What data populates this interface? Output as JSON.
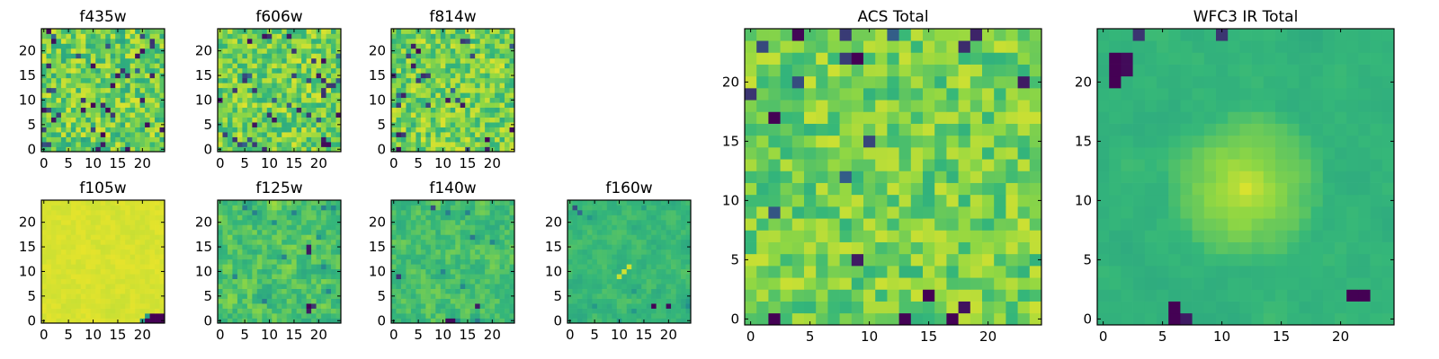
{
  "chart_data": {
    "type": "heatmap",
    "colormap": "viridis",
    "colormap_stops": [
      "#440154",
      "#31688e",
      "#21918c",
      "#35b779",
      "#90d743",
      "#fde725"
    ],
    "panels": [
      {
        "id": "f435w",
        "title": "f435w",
        "grid_size": 25,
        "x_range": [
          0,
          25
        ],
        "y_range": [
          0,
          25
        ],
        "xticks": [
          0,
          5,
          10,
          15,
          20
        ],
        "yticks": [
          0,
          5,
          10,
          15,
          20
        ],
        "mean_level": 0.72,
        "noise_level": 0.22,
        "dark_pixel_rate": 0.06,
        "smoothness": 0,
        "features": [],
        "seed": 11
      },
      {
        "id": "f606w",
        "title": "f606w",
        "grid_size": 25,
        "x_range": [
          0,
          25
        ],
        "y_range": [
          0,
          25
        ],
        "xticks": [
          0,
          5,
          10,
          15,
          20
        ],
        "yticks": [
          0,
          5,
          10,
          15,
          20
        ],
        "mean_level": 0.74,
        "noise_level": 0.2,
        "dark_pixel_rate": 0.05,
        "smoothness": 0,
        "features": [
          {
            "x": 21,
            "y": 1,
            "value": 0.02
          },
          {
            "x": 22,
            "y": 1,
            "value": 0.02
          },
          {
            "x": 21,
            "y": 2,
            "value": 0.05
          }
        ],
        "seed": 23
      },
      {
        "id": "f814w",
        "title": "f814w",
        "grid_size": 25,
        "x_range": [
          0,
          25
        ],
        "y_range": [
          0,
          25
        ],
        "xticks": [
          0,
          5,
          10,
          15,
          20
        ],
        "yticks": [
          0,
          5,
          10,
          15,
          20
        ],
        "mean_level": 0.74,
        "noise_level": 0.2,
        "dark_pixel_rate": 0.05,
        "smoothness": 0,
        "features": [
          {
            "x": 1,
            "y": 0,
            "value": 0.02
          }
        ],
        "seed": 37
      },
      {
        "id": "f105w",
        "title": "f105w",
        "grid_size": 25,
        "x_range": [
          0,
          25
        ],
        "y_range": [
          0,
          25
        ],
        "xticks": [
          0,
          5,
          10,
          15,
          20
        ],
        "yticks": [
          0,
          5,
          10,
          15,
          20
        ],
        "mean_level": 0.93,
        "noise_level": 0.04,
        "dark_pixel_rate": 0,
        "smoothness": 1,
        "features": [
          {
            "x": 21,
            "y": 0,
            "value": 0.0
          },
          {
            "x": 22,
            "y": 0,
            "value": 0.0
          },
          {
            "x": 23,
            "y": 0,
            "value": 0.0
          },
          {
            "x": 24,
            "y": 0,
            "value": 0.0
          },
          {
            "x": 22,
            "y": 1,
            "value": 0.0
          },
          {
            "x": 23,
            "y": 1,
            "value": 0.0
          },
          {
            "x": 24,
            "y": 1,
            "value": 0.0
          },
          {
            "x": 20,
            "y": 0,
            "value": 0.45
          },
          {
            "x": 21,
            "y": 1,
            "value": 0.45
          }
        ],
        "seed": 41
      },
      {
        "id": "f125w",
        "title": "f125w",
        "grid_size": 25,
        "x_range": [
          0,
          25
        ],
        "y_range": [
          0,
          25
        ],
        "xticks": [
          0,
          5,
          10,
          15,
          20
        ],
        "yticks": [
          0,
          5,
          10,
          15,
          20
        ],
        "mean_level": 0.66,
        "noise_level": 0.2,
        "dark_pixel_rate": 0.02,
        "smoothness": 1,
        "features": [
          {
            "x": 18,
            "y": 3,
            "value": 0.0
          },
          {
            "x": 18,
            "y": 2,
            "value": 0.05
          },
          {
            "x": 19,
            "y": 3,
            "value": 0.1
          },
          {
            "x": 18,
            "y": 14,
            "value": 0.05
          },
          {
            "x": 18,
            "y": 15,
            "value": 0.05
          }
        ],
        "seed": 53
      },
      {
        "id": "f140w",
        "title": "f140w",
        "grid_size": 25,
        "x_range": [
          0,
          25
        ],
        "y_range": [
          0,
          25
        ],
        "xticks": [
          0,
          5,
          10,
          15,
          20
        ],
        "yticks": [
          0,
          5,
          10,
          15,
          20
        ],
        "mean_level": 0.64,
        "noise_level": 0.16,
        "dark_pixel_rate": 0.01,
        "smoothness": 1,
        "features": [
          {
            "x": 11,
            "y": 0,
            "value": 0.02
          },
          {
            "x": 12,
            "y": 0,
            "value": 0.02
          },
          {
            "x": 17,
            "y": 3,
            "value": 0.05
          },
          {
            "x": 1,
            "y": 9,
            "value": 0.1
          },
          {
            "x": 8,
            "y": 23,
            "value": 0.15
          }
        ],
        "seed": 67
      },
      {
        "id": "f160w",
        "title": "f160w",
        "grid_size": 25,
        "x_range": [
          0,
          25
        ],
        "y_range": [
          0,
          25
        ],
        "xticks": [
          0,
          5,
          10,
          15,
          20
        ],
        "yticks": [
          0,
          5,
          10,
          15,
          20
        ],
        "mean_level": 0.6,
        "noise_level": 0.16,
        "dark_pixel_rate": 0.01,
        "smoothness": 2,
        "features": [
          {
            "x": 17,
            "y": 3,
            "value": 0.0
          },
          {
            "x": 20,
            "y": 3,
            "value": 0.02
          },
          {
            "x": 11,
            "y": 10,
            "value": 0.92
          },
          {
            "x": 12,
            "y": 11,
            "value": 0.92
          },
          {
            "x": 10,
            "y": 9,
            "value": 0.9
          },
          {
            "x": 1,
            "y": 23,
            "value": 0.15
          },
          {
            "x": 2,
            "y": 22,
            "value": 0.2
          }
        ],
        "seed": 79
      },
      {
        "id": "acs-total",
        "title": "ACS Total",
        "grid_size": 25,
        "x_range": [
          0,
          25
        ],
        "y_range": [
          0,
          25
        ],
        "xticks": [
          0,
          5,
          10,
          15,
          20
        ],
        "yticks": [
          0,
          5,
          10,
          15,
          20
        ],
        "mean_level": 0.74,
        "noise_level": 0.17,
        "dark_pixel_rate": 0.03,
        "smoothness": 0,
        "features": [
          {
            "x": 2,
            "y": 0,
            "value": 0.0
          },
          {
            "x": 17,
            "y": 0,
            "value": 0.0
          },
          {
            "x": 15,
            "y": 2,
            "value": 0.0
          },
          {
            "x": 9,
            "y": 5,
            "value": 0.05
          },
          {
            "x": 2,
            "y": 17,
            "value": 0.0
          },
          {
            "x": 9,
            "y": 22,
            "value": 0.0
          },
          {
            "x": 23,
            "y": 20,
            "value": 0.05
          },
          {
            "x": 0,
            "y": 19,
            "value": 0.1
          }
        ],
        "seed": 97
      },
      {
        "id": "wfc3-ir-total",
        "title": "WFC3 IR Total",
        "grid_size": 25,
        "x_range": [
          0,
          25
        ],
        "y_range": [
          0,
          25
        ],
        "xticks": [
          0,
          5,
          10,
          15,
          20
        ],
        "yticks": [
          0,
          5,
          10,
          15,
          20
        ],
        "mean_level": 0.58,
        "noise_level": 0.08,
        "dark_pixel_rate": 0,
        "smoothness": 2,
        "center_boost": {
          "x": 12,
          "y": 11,
          "radius": 7,
          "value": 0.35
        },
        "features": [
          {
            "x": 1,
            "y": 20,
            "value": 0.0
          },
          {
            "x": 1,
            "y": 21,
            "value": 0.0
          },
          {
            "x": 1,
            "y": 22,
            "value": 0.0
          },
          {
            "x": 2,
            "y": 21,
            "value": 0.02
          },
          {
            "x": 2,
            "y": 22,
            "value": 0.02
          },
          {
            "x": 6,
            "y": 0,
            "value": 0.0
          },
          {
            "x": 6,
            "y": 1,
            "value": 0.0
          },
          {
            "x": 7,
            "y": 0,
            "value": 0.05
          },
          {
            "x": 21,
            "y": 2,
            "value": 0.0
          },
          {
            "x": 22,
            "y": 2,
            "value": 0.0
          },
          {
            "x": 3,
            "y": 24,
            "value": 0.1
          },
          {
            "x": 10,
            "y": 24,
            "value": 0.1
          }
        ],
        "seed": 113
      }
    ]
  }
}
